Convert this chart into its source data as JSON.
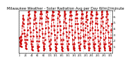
{
  "title": "Milwaukee Weather - Solar Radiation Avg per Day W/m2/minute",
  "title_fontsize": 3.8,
  "line_color": "#cc0000",
  "line_style": "--",
  "line_width": 0.6,
  "marker": "s",
  "marker_size": 0.8,
  "background_color": "#ffffff",
  "grid_color": "#bbbbbb",
  "grid_style": ":",
  "ylim": [
    0,
    7
  ],
  "yticks": [
    1,
    2,
    3,
    4,
    5,
    6,
    7
  ],
  "ytick_labels": [
    "1",
    "2",
    "3",
    "4",
    "5",
    "6",
    "7"
  ],
  "ytick_fontsize": 3.0,
  "xtick_fontsize": 2.5,
  "values": [
    2.5,
    1.8,
    1.2,
    2.0,
    2.8,
    1.5,
    1.0,
    2.2,
    3.2,
    4.5,
    5.0,
    5.8,
    6.2,
    5.5,
    4.8,
    3.8,
    3.2,
    2.8,
    2.2,
    1.8,
    1.2,
    0.8,
    0.7,
    1.5,
    2.2,
    3.0,
    3.8,
    4.8,
    5.5,
    6.2,
    6.8,
    7.0,
    6.5,
    5.8,
    5.0,
    4.2,
    3.5,
    2.8,
    2.0,
    1.5,
    1.0,
    0.6,
    0.5,
    1.0,
    2.0,
    2.8,
    3.8,
    4.8,
    5.5,
    6.2,
    6.8,
    7.2,
    6.8,
    5.8,
    5.0,
    4.2,
    3.5,
    2.8,
    2.0,
    1.2,
    0.8,
    0.5,
    0.4,
    1.0,
    2.0,
    2.8,
    3.8,
    5.0,
    5.8,
    6.5,
    6.8,
    7.0,
    6.5,
    5.8,
    4.8,
    4.0,
    3.2,
    2.5,
    1.8,
    1.2,
    0.8,
    0.5,
    0.7,
    1.5,
    2.2,
    3.2,
    4.2,
    5.2,
    6.0,
    6.8,
    7.0,
    7.2,
    6.8,
    5.8,
    5.2,
    4.2,
    3.5,
    2.8,
    2.0,
    1.2,
    0.8,
    0.5,
    0.7,
    1.5,
    2.2,
    3.2,
    4.5,
    5.5,
    6.2,
    6.8,
    7.2,
    6.8,
    6.2,
    5.5,
    4.5,
    3.8,
    3.0,
    2.2,
    1.5,
    1.0,
    0.6,
    0.4,
    0.8,
    1.5,
    2.5,
    3.5,
    4.5,
    5.8,
    6.5,
    7.0,
    7.2,
    6.8,
    6.2,
    5.2,
    4.5,
    3.8,
    3.0,
    2.2,
    1.5,
    1.0,
    0.6,
    0.4,
    0.8,
    1.5,
    2.2,
    3.2,
    4.2,
    5.2,
    6.2,
    6.8,
    7.0,
    6.5,
    5.8,
    5.0,
    4.2,
    3.5,
    2.8,
    2.0,
    1.2,
    0.8,
    0.5,
    0.7,
    1.5,
    2.5,
    3.5,
    4.5,
    5.5,
    6.2,
    6.8,
    7.0,
    6.8,
    6.2,
    5.5,
    4.5,
    3.8,
    3.0,
    2.2,
    1.5,
    1.0,
    0.7,
    0.5,
    0.8,
    1.5,
    2.5,
    3.5,
    4.8,
    5.8,
    6.5,
    7.0,
    7.0,
    6.5,
    5.8,
    4.8,
    4.0,
    3.2,
    2.5,
    1.8,
    1.2,
    0.8,
    0.5,
    0.8,
    1.5,
    2.5,
    3.8,
    5.0,
    5.8,
    6.5,
    7.0,
    6.5,
    5.8,
    4.8,
    3.8,
    2.8,
    2.0,
    1.2,
    0.8,
    1.2,
    2.0,
    3.0,
    4.2,
    5.2,
    6.0,
    6.8,
    6.2,
    5.5,
    4.5,
    3.5,
    2.5,
    1.5,
    0.8,
    0.5,
    0.8,
    1.5,
    2.5,
    3.8,
    5.0,
    5.8,
    6.5,
    7.0,
    6.8,
    6.2,
    5.2,
    4.2,
    3.2,
    2.2,
    1.5,
    1.0,
    0.5,
    0.8,
    1.5,
    2.5,
    3.8,
    5.0,
    5.8,
    6.5,
    6.8,
    6.5,
    5.8,
    4.8,
    3.8,
    2.8,
    2.0,
    1.2,
    0.8,
    0.5,
    0.4,
    0.8,
    1.5,
    2.5,
    3.5,
    4.5,
    5.8,
    6.5,
    7.0,
    6.8,
    6.0,
    5.2,
    4.2,
    3.2,
    2.2,
    1.5,
    1.0,
    0.5,
    0.8,
    1.5,
    2.5,
    3.8,
    5.0,
    6.0,
    6.8,
    7.0,
    6.5,
    5.5,
    4.5,
    3.5,
    2.5,
    1.8,
    1.2,
    0.8,
    0.5,
    0.5,
    0.8,
    1.5,
    2.5,
    3.8,
    4.8
  ],
  "vgrid_step": 30,
  "xlabels_step": 20
}
